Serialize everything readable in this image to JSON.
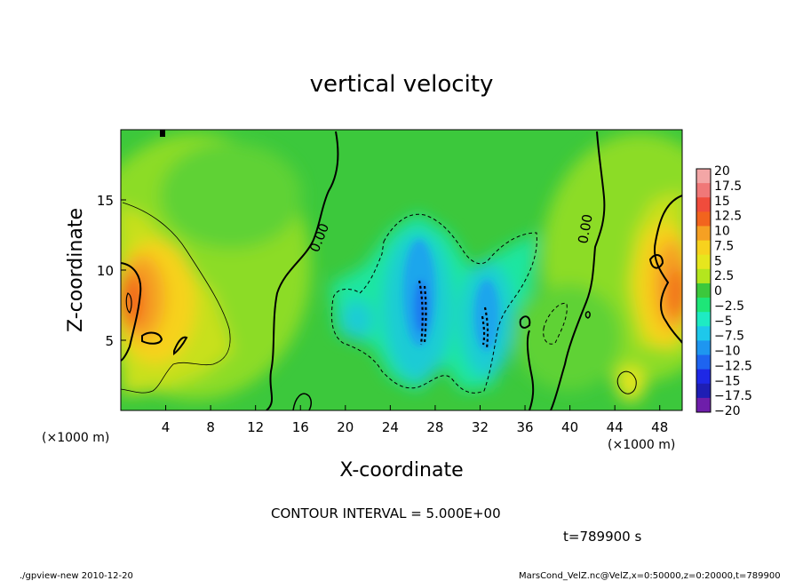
{
  "chart_data": {
    "type": "heatmap",
    "title": "vertical velocity",
    "xlabel": "X-coordinate",
    "ylabel": "Z-coordinate",
    "x_unit_label": "(×1000 m)",
    "y_unit_label": "(×1000 m)",
    "xlim": [
      0,
      50
    ],
    "ylim": [
      0,
      20
    ],
    "x_ticks": [
      "4",
      "8",
      "12",
      "16",
      "20",
      "24",
      "28",
      "32",
      "36",
      "40",
      "44",
      "48"
    ],
    "y_ticks": [
      "5",
      "10",
      "15"
    ],
    "colorbar": {
      "labels": [
        "20",
        "17.5",
        "15",
        "12.5",
        "10",
        "7.5",
        "5",
        "2.5",
        "0",
        "−2.5",
        "−5",
        "−7.5",
        "−10",
        "−12.5",
        "−15",
        "−17.5",
        "−20"
      ],
      "colors": [
        "#f3a6a6",
        "#f07878",
        "#f04c3c",
        "#f2641e",
        "#f5a023",
        "#f7d21e",
        "#e6e61e",
        "#b4e61e",
        "#3cc83c",
        "#1ee678",
        "#1eebc3",
        "#1ec8eb",
        "#1e96f0",
        "#1e64f0",
        "#1e28e6",
        "#1e1eb4",
        "#6e1eaa"
      ],
      "range": [
        -20,
        20
      ]
    },
    "contour_labels": [
      "0.00",
      "0.00"
    ],
    "contour_interval_label": "CONTOUR INTERVAL = 5.000E+00",
    "time_label": "t=789900 s",
    "grid": false
  },
  "footer": {
    "left": "./gpview-new  2010-12-20",
    "right": "MarsCond_VelZ.nc@VelZ,x=0:50000,z=0:20000,t=789900"
  }
}
